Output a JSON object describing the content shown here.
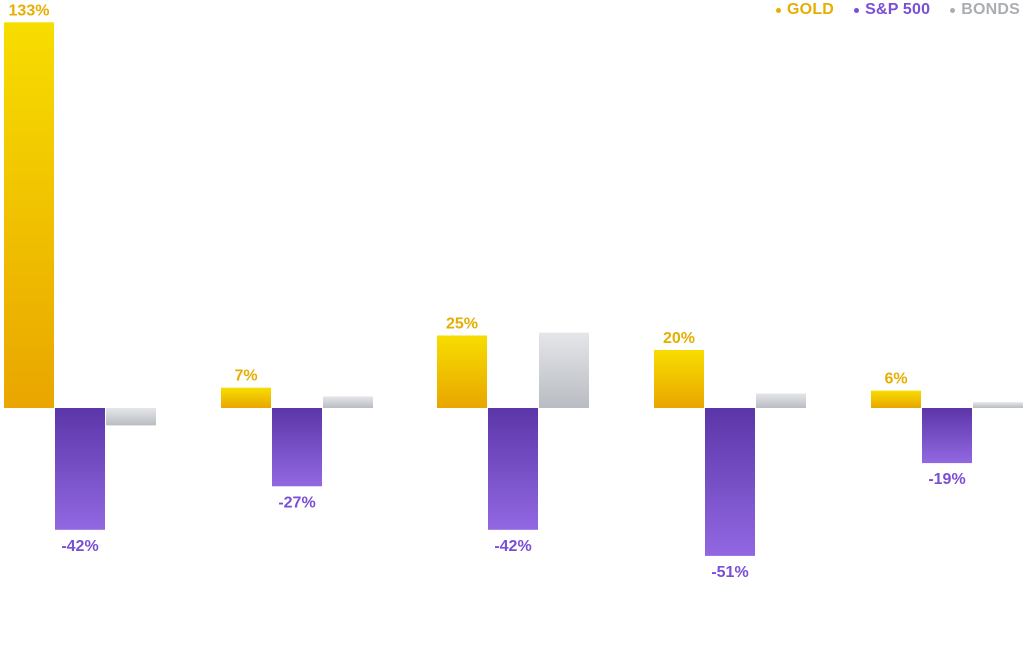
{
  "chart_data": {
    "type": "bar",
    "categories": [
      "",
      "",
      "",
      "",
      ""
    ],
    "series": [
      {
        "name": "GOLD",
        "color": "#E6AE00",
        "values": [
          133,
          7,
          25,
          20,
          6
        ],
        "labels": [
          "133%",
          "7%",
          "25%",
          "20%",
          "6%"
        ]
      },
      {
        "name": "S&P 500",
        "color": "#7A4FD6",
        "values": [
          -42,
          -27,
          -42,
          -51,
          -19
        ],
        "labels": [
          "-42%",
          "-27%",
          "-42%",
          "-51%",
          "-19%"
        ]
      },
      {
        "name": "BONDS",
        "color": "#AAAEB3",
        "values": [
          -6,
          4,
          26,
          5,
          2
        ],
        "labels": [
          "",
          "",
          "",
          "",
          ""
        ]
      }
    ],
    "ylim": [
      -83,
      140
    ],
    "grid": false,
    "legend_position": "top-right"
  },
  "legend": [
    {
      "label": "GOLD",
      "color": "#E6AE00"
    },
    {
      "label": "S&P 500",
      "color": "#7A4FD6"
    },
    {
      "label": "BONDS",
      "color": "#AAAEB3"
    }
  ]
}
